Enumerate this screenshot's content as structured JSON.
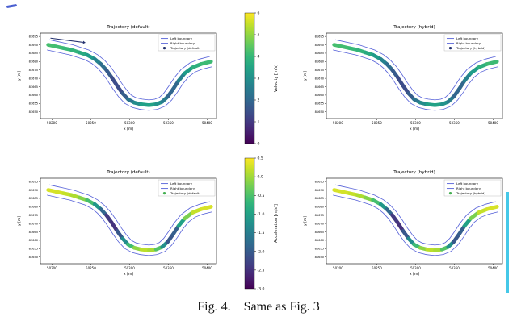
{
  "caption": "Fig. 4.    Same as Fig. 3",
  "colors": {
    "boundary": "#5560d8",
    "trajectory_marker_velocity": "#23306e",
    "trajectory_marker_acceleration": "#45b052",
    "cyan_marker": "#45c8e8",
    "artifact_blue": "#4a5fd0"
  },
  "colorbars": [
    {
      "label": "Velocity [m/s]",
      "min": 0,
      "max": 6,
      "ticks": [
        "0",
        "1",
        "2",
        "3",
        "4",
        "5",
        "6"
      ]
    },
    {
      "label": "Acceleration [m/s²]",
      "min": -3.0,
      "max": 0.5,
      "ticks": [
        "0.5",
        "0.0",
        "-0.5",
        "-1.0",
        "-1.5",
        "-2.0",
        "-2.5",
        "-3.0"
      ]
    }
  ],
  "road": {
    "x": [
      50195,
      50205,
      50215,
      50225,
      50235,
      50245,
      50255,
      50263,
      50270,
      50277,
      50284,
      50291,
      50298,
      50306,
      50315,
      50325,
      50334,
      50342,
      50349,
      50356,
      50363,
      50371,
      50381,
      50392,
      50405
    ],
    "y": [
      81690,
      81689,
      81688,
      81687,
      81685.5,
      81684,
      81681.5,
      81678.5,
      81675,
      81670.5,
      81665.5,
      81661,
      81657.5,
      81655.5,
      81654.5,
      81654,
      81654.5,
      81656,
      81659,
      81663.5,
      81668.5,
      81673,
      81676.5,
      81678.5,
      81680
    ],
    "velocity": [
      4.2,
      4.2,
      4.1,
      4.0,
      3.8,
      3.5,
      3.0,
      2.4,
      1.9,
      1.5,
      1.3,
      1.5,
      2.0,
      2.6,
      3.2,
      3.6,
      3.3,
      2.8,
      2.2,
      1.7,
      2.3,
      3.0,
      3.6,
      4.0,
      4.2
    ],
    "acceleration": [
      0.3,
      0.3,
      0.25,
      0.15,
      0.0,
      -0.3,
      -0.8,
      -1.5,
      -2.2,
      -2.6,
      -2.4,
      -1.7,
      -0.9,
      -0.3,
      0.1,
      0.2,
      -0.1,
      -0.8,
      -1.7,
      -2.4,
      -1.5,
      -0.5,
      0.1,
      0.3,
      0.3
    ]
  },
  "chart_data": [
    {
      "type": "line",
      "title": "Trajectory (default)",
      "xlabel": "x [m]",
      "ylabel": "y [m]",
      "xlim": [
        50185,
        50412
      ],
      "ylim": [
        81646,
        81697
      ],
      "xticks": [
        50200,
        50250,
        50300,
        50350,
        50400
      ],
      "yticks": [
        81650,
        81655,
        81660,
        81665,
        81670,
        81675,
        81680,
        81685,
        81690,
        81695
      ],
      "values_key": "velocity",
      "colorbar": 0,
      "arrow": true,
      "legend": [
        {
          "label": "Left boundary",
          "type": "line",
          "color": "#5560d8"
        },
        {
          "label": "Right boundary",
          "type": "line",
          "color": "#5560d8"
        },
        {
          "label": "Trajectory (default)",
          "type": "dot",
          "color": "#23306e"
        }
      ]
    },
    {
      "type": "line",
      "title": "Trajectory (hybrid)",
      "xlabel": "x [m]",
      "ylabel": "y [m]",
      "xlim": [
        50185,
        50412
      ],
      "ylim": [
        81646,
        81697
      ],
      "xticks": [
        50200,
        50250,
        50300,
        50350,
        50400
      ],
      "yticks": [
        81650,
        81655,
        81660,
        81665,
        81670,
        81675,
        81680,
        81685,
        81690,
        81695
      ],
      "values_key": "velocity",
      "colorbar": 0,
      "arrow": false,
      "legend": [
        {
          "label": "Left boundary",
          "type": "line",
          "color": "#5560d8"
        },
        {
          "label": "Right boundary",
          "type": "line",
          "color": "#5560d8"
        },
        {
          "label": "Trajectory (hybrid)",
          "type": "dot",
          "color": "#23306e"
        }
      ]
    },
    {
      "type": "line",
      "title": "Trajectory (default)",
      "xlabel": "x [m]",
      "ylabel": "y [m]",
      "xlim": [
        50185,
        50412
      ],
      "ylim": [
        81646,
        81697
      ],
      "xticks": [
        50200,
        50250,
        50300,
        50350,
        50400
      ],
      "yticks": [
        81650,
        81655,
        81660,
        81665,
        81670,
        81675,
        81680,
        81685,
        81690,
        81695
      ],
      "values_key": "acceleration",
      "colorbar": 1,
      "arrow": false,
      "legend": [
        {
          "label": "Left boundary",
          "type": "line",
          "color": "#5560d8"
        },
        {
          "label": "Right boundary",
          "type": "line",
          "color": "#5560d8"
        },
        {
          "label": "Trajectory (default)",
          "type": "dot",
          "color": "#45b052"
        }
      ]
    },
    {
      "type": "line",
      "title": "Trajectory (hybrid)",
      "xlabel": "x [m]",
      "ylabel": "y [m]",
      "xlim": [
        50185,
        50412
      ],
      "ylim": [
        81646,
        81697
      ],
      "xticks": [
        50200,
        50250,
        50300,
        50350,
        50400
      ],
      "yticks": [
        81650,
        81655,
        81660,
        81665,
        81670,
        81675,
        81680,
        81685,
        81690,
        81695
      ],
      "values_key": "acceleration",
      "colorbar": 1,
      "arrow": false,
      "legend": [
        {
          "label": "Left boundary",
          "type": "line",
          "color": "#5560d8"
        },
        {
          "label": "Right boundary",
          "type": "line",
          "color": "#5560d8"
        },
        {
          "label": "Trajectory (hybrid)",
          "type": "dot",
          "color": "#45b052"
        }
      ]
    }
  ]
}
